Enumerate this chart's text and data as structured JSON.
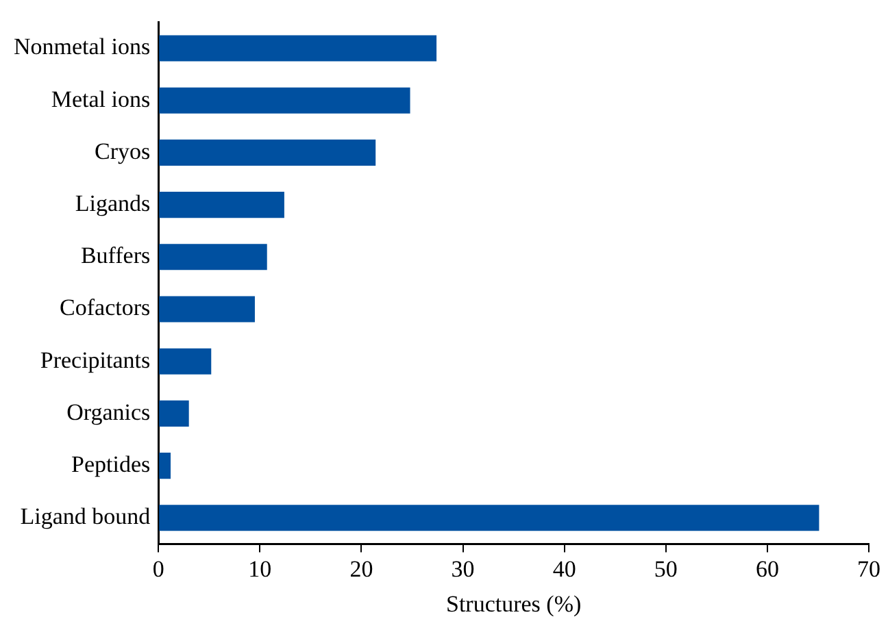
{
  "chart_data": {
    "type": "bar",
    "orientation": "horizontal",
    "xlabel": "Structures (%)",
    "categories": [
      "Nonmetal ions",
      "Metal ions",
      "Cryos",
      "Ligands",
      "Buffers",
      "Cofactors",
      "Precipitants",
      "Organics",
      "Peptides",
      "Ligand bound"
    ],
    "values": [
      27.4,
      24.8,
      21.4,
      12.4,
      10.7,
      9.5,
      5.2,
      3.0,
      1.2,
      65.1
    ],
    "color": "#0050a0",
    "xlim": [
      0,
      70
    ],
    "xticks": [
      0,
      10,
      20,
      30,
      40,
      50,
      60,
      70
    ],
    "grid": false,
    "legend": false
  }
}
